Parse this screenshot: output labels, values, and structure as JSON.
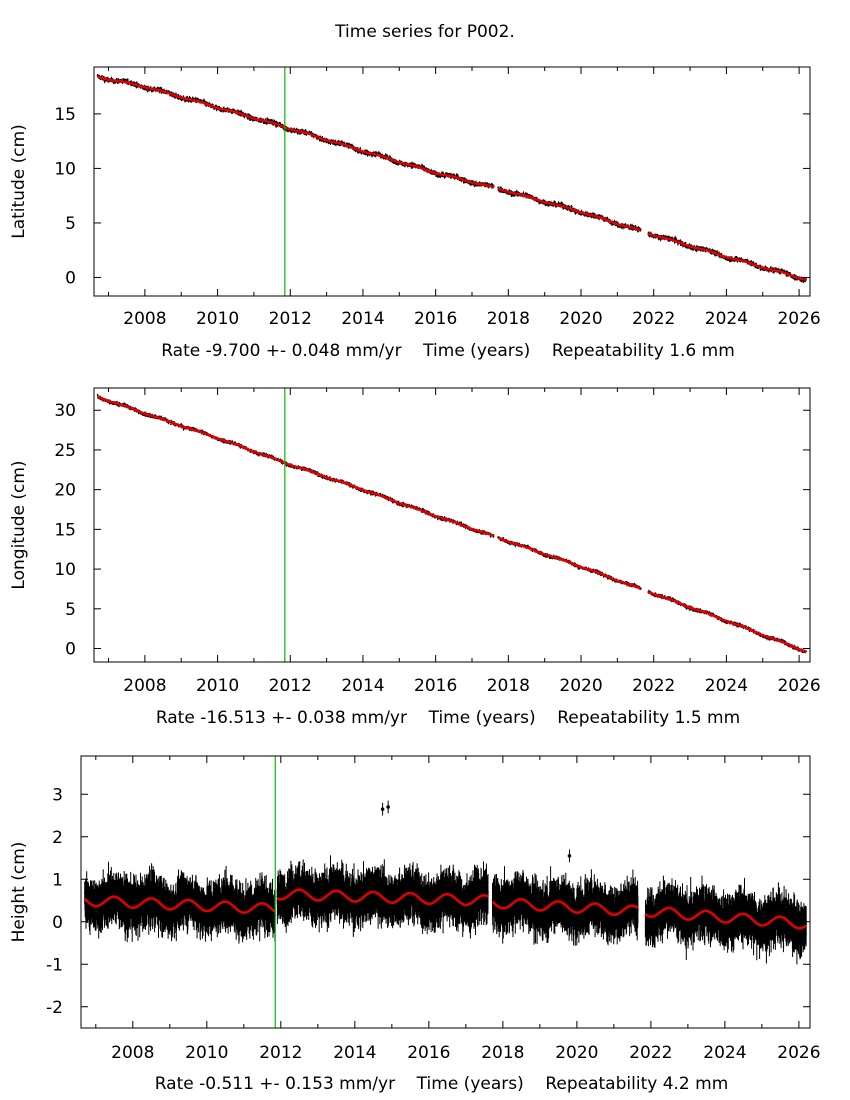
{
  "title": "Time series for P002.",
  "chart_data": [
    {
      "type": "scatter",
      "name": "latitude",
      "ylabel": "Latitude (cm)",
      "xlabel": "Time (years)",
      "footer": "Rate -9.700 +- 0.048 mm/yr    Time (years)    Repeatability 1.6 mm",
      "xlim": [
        2006.6,
        2026.3
      ],
      "ylim": [
        -1.7,
        19.3
      ],
      "yticks": [
        0,
        5,
        10,
        15
      ],
      "xticks": [
        2008,
        2010,
        2012,
        2014,
        2016,
        2018,
        2020,
        2022,
        2024,
        2026
      ],
      "marker_year": 2011.85,
      "gaps": [
        [
          2017.6,
          2017.72
        ],
        [
          2021.65,
          2021.85
        ]
      ],
      "series": [
        {
          "x": [
            2006.7,
            2008.0,
            2010.0,
            2011.85,
            2014.0,
            2016.0,
            2018.0,
            2020.0,
            2022.0,
            2024.0,
            2026.2
          ],
          "y": [
            18.4,
            17.5,
            15.6,
            13.8,
            11.6,
            9.6,
            7.9,
            6.0,
            3.9,
            1.9,
            -0.2
          ]
        }
      ],
      "seasonal_amp": 0.1,
      "scatter_sd": 0.18
    },
    {
      "type": "scatter",
      "name": "longitude",
      "ylabel": "Longitude (cm)",
      "xlabel": "Time (years)",
      "footer": "Rate -16.513 +- 0.038 mm/yr    Time (years)    Repeatability 1.5 mm",
      "xlim": [
        2006.6,
        2026.3
      ],
      "ylim": [
        -1.7,
        32.8
      ],
      "yticks": [
        0,
        5,
        10,
        15,
        20,
        25,
        30
      ],
      "xticks": [
        2008,
        2010,
        2012,
        2014,
        2016,
        2018,
        2020,
        2022,
        2024,
        2026
      ],
      "marker_year": 2011.85,
      "gaps": [
        [
          2017.6,
          2017.72
        ],
        [
          2021.65,
          2021.85
        ]
      ],
      "series": [
        {
          "x": [
            2006.7,
            2008.0,
            2010.0,
            2011.85,
            2014.0,
            2016.0,
            2018.0,
            2020.0,
            2022.0,
            2024.0,
            2026.2
          ],
          "y": [
            31.7,
            29.6,
            26.5,
            23.4,
            20.0,
            16.7,
            13.5,
            10.3,
            6.9,
            3.5,
            -0.4
          ]
        }
      ],
      "seasonal_amp": 0.1,
      "scatter_sd": 0.2
    },
    {
      "type": "scatter",
      "name": "height",
      "ylabel": "Height (cm)",
      "xlabel": "Time (years)",
      "footer": "Rate -0.511 +- 0.153 mm/yr    Time (years)    Repeatability 4.2 mm",
      "xlim": [
        2006.6,
        2026.3
      ],
      "ylim": [
        -2.5,
        3.9
      ],
      "yticks": [
        -2,
        -1,
        0,
        1,
        2,
        3
      ],
      "xticks": [
        2008,
        2010,
        2012,
        2014,
        2016,
        2018,
        2020,
        2022,
        2024,
        2026
      ],
      "marker_year": 2011.85,
      "gaps": [
        [
          2011.85,
          2011.9
        ],
        [
          2017.6,
          2017.72
        ],
        [
          2021.65,
          2021.85
        ]
      ],
      "series": [
        {
          "x": [
            2006.7,
            2011.85,
            2011.9,
            2017.6,
            2017.72,
            2021.65,
            2021.85,
            2026.2
          ],
          "y": [
            0.5,
            0.3,
            0.65,
            0.5,
            0.45,
            0.25,
            0.25,
            -0.05
          ]
        }
      ],
      "seasonal_amp": 0.12,
      "scatter_sd": 0.35,
      "outliers": [
        [
          2014.75,
          2.65
        ],
        [
          2014.9,
          2.7
        ],
        [
          2019.8,
          1.55
        ]
      ]
    }
  ]
}
